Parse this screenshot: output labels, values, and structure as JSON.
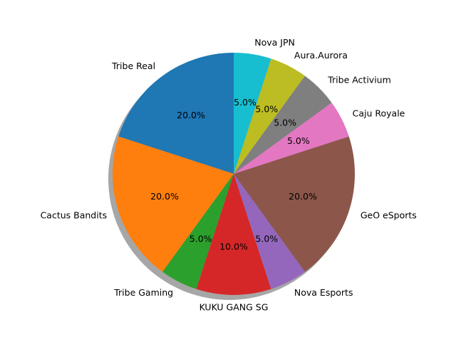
{
  "chart_data": {
    "type": "pie",
    "title": "",
    "shadow": true,
    "start_angle_deg": 90,
    "direction": "counterclockwise",
    "slices": [
      {
        "label": "Tribe Real",
        "value": 20,
        "pct_label": "20.0%",
        "color": "#1f77b4"
      },
      {
        "label": "Cactus Bandits",
        "value": 20,
        "pct_label": "20.0%",
        "color": "#ff7f0e"
      },
      {
        "label": "Tribe Gaming",
        "value": 5,
        "pct_label": "5.0%",
        "color": "#2ca02c"
      },
      {
        "label": "KUKU GANG SG",
        "value": 10,
        "pct_label": "10.0%",
        "color": "#d62728"
      },
      {
        "label": "Nova Esports",
        "value": 5,
        "pct_label": "5.0%",
        "color": "#9467bd"
      },
      {
        "label": "GeO eSports",
        "value": 20,
        "pct_label": "20.0%",
        "color": "#8c564b"
      },
      {
        "label": "Caju Royale",
        "value": 5,
        "pct_label": "5.0%",
        "color": "#e377c2"
      },
      {
        "label": "Tribe Activium",
        "value": 5,
        "pct_label": "5.0%",
        "color": "#7f7f7f"
      },
      {
        "label": "Aura.Aurora",
        "value": 5,
        "pct_label": "5.0%",
        "color": "#bcbd22"
      },
      {
        "label": "Nova JPN",
        "value": 5,
        "pct_label": "5.0%",
        "color": "#17becf"
      }
    ]
  }
}
